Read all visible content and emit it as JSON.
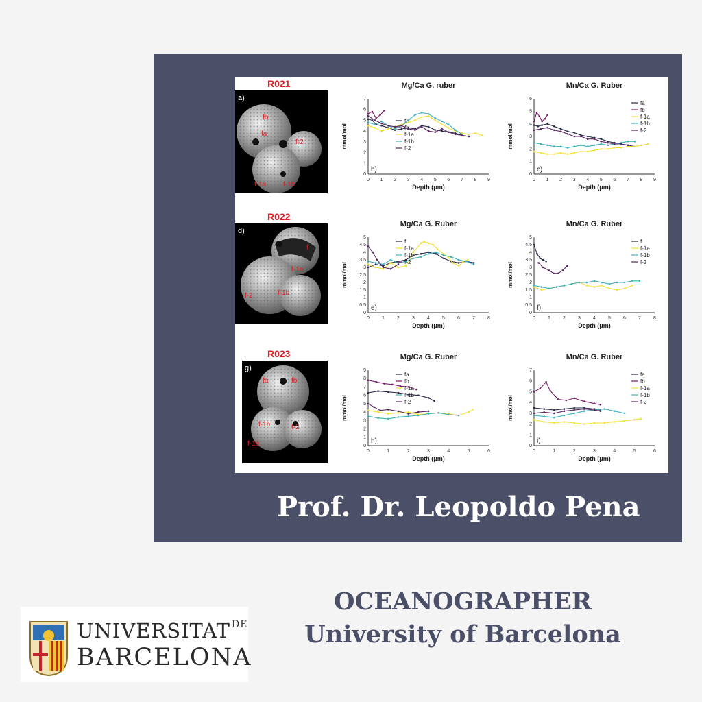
{
  "speaker_name": "Prof. Dr. Leopoldo Pena",
  "role": {
    "line1": "OCEANOGRAPHER",
    "line2": "University of Barcelona"
  },
  "logo": {
    "line1": "UNIVERSITAT",
    "line1_suffix": "DE",
    "line2": "BARCELONA"
  },
  "samples": [
    {
      "name": "R021",
      "panel": "a)",
      "labels": [
        "fb",
        "fa",
        "f-2",
        "f-1a",
        "f-1b"
      ]
    },
    {
      "name": "R022",
      "panel": "d)",
      "labels": [
        "f",
        "f-1a",
        "f-2",
        "f-1b"
      ]
    },
    {
      "name": "R023",
      "panel": "g)",
      "labels": [
        "fa",
        "fb",
        "f-1b",
        "f-2",
        "f-1a"
      ]
    }
  ],
  "colors": {
    "fa": "#2b2b4a",
    "fb": "#7a1f6e",
    "f": "#2b2b4a",
    "f-1a": "#f2e03a",
    "f-1b": "#3fb0b8",
    "f-2": "#5a2a66",
    "panel": "#4b5068"
  },
  "chart_data": [
    {
      "panel": "b)",
      "type": "line",
      "title": "Mg/Ca G. ruber",
      "xlabel": "Depth (μm)",
      "ylabel": "mmol/mol",
      "xlim": [
        0,
        9
      ],
      "ylim": [
        0,
        7
      ],
      "xticks": [
        "0",
        "1",
        "2",
        "3",
        "4",
        "5",
        "6",
        "7",
        "8",
        "9"
      ],
      "yticks": [
        "0",
        "1",
        "2",
        "3",
        "4",
        "5",
        "6",
        "7"
      ],
      "series": [
        {
          "name": "fa",
          "x": [
            0,
            0.3,
            0.6,
            1,
            1.5,
            2,
            2.5,
            3,
            3.5,
            4,
            4.5,
            5,
            5.5,
            6,
            6.5,
            7,
            7.5
          ],
          "y": [
            5.1,
            5.0,
            4.6,
            4.5,
            4.3,
            4.1,
            4.2,
            4.3,
            4.2,
            4.5,
            4.4,
            4.1,
            4.0,
            3.9,
            3.8,
            3.6,
            3.5
          ]
        },
        {
          "name": "fb",
          "x": [
            0,
            0.3,
            0.6,
            0.9,
            1.2
          ],
          "y": [
            5.6,
            5.8,
            5.2,
            5.5,
            5.9
          ]
        },
        {
          "name": "f-1a",
          "x": [
            0,
            0.5,
            1,
            1.5,
            2,
            2.5,
            3,
            3.5,
            4,
            4.5,
            5,
            5.5,
            6,
            6.5,
            7,
            7.5,
            8,
            8.5
          ],
          "y": [
            4.5,
            4.3,
            4.0,
            4.2,
            4.4,
            4.6,
            4.8,
            5.0,
            5.3,
            5.4,
            5.0,
            4.6,
            4.3,
            4.0,
            3.8,
            3.7,
            3.8,
            3.6
          ]
        },
        {
          "name": "f-1b",
          "x": [
            0,
            0.5,
            1,
            1.5,
            2,
            2.5,
            3,
            3.5,
            4,
            4.5,
            5,
            5.5,
            6,
            6.5,
            7
          ],
          "y": [
            4.8,
            4.6,
            4.9,
            4.5,
            4.2,
            4.5,
            5.0,
            5.5,
            5.7,
            5.6,
            5.2,
            4.9,
            4.6,
            4.1,
            3.7
          ]
        },
        {
          "name": "f-2",
          "x": [
            0,
            0.5,
            1,
            1.5,
            2,
            2.5,
            3,
            3.5,
            4,
            4.5,
            5,
            5.5,
            6,
            6.5,
            7,
            7.5
          ],
          "y": [
            5.4,
            5.0,
            4.7,
            4.5,
            4.4,
            4.5,
            4.2,
            4.1,
            4.4,
            4.0,
            3.9,
            4.2,
            3.9,
            3.7,
            3.6,
            3.5
          ]
        }
      ]
    },
    {
      "panel": "c)",
      "type": "line",
      "title": "Mn/Ca G. Ruber",
      "xlabel": "Depth (μm)",
      "ylabel": "mmol/mol",
      "xlim": [
        0,
        9
      ],
      "ylim": [
        0,
        6
      ],
      "xticks": [
        "0",
        "1",
        "2",
        "3",
        "4",
        "5",
        "6",
        "7",
        "8",
        "9"
      ],
      "yticks": [
        "0",
        "1",
        "2",
        "3",
        "4",
        "5",
        "6"
      ],
      "series": [
        {
          "name": "fa",
          "x": [
            0,
            0.3,
            0.6,
            1,
            1.5,
            2,
            2.5,
            3,
            3.5,
            4,
            4.5,
            5,
            5.5,
            6,
            6.5,
            7,
            7.5
          ],
          "y": [
            3.9,
            3.8,
            3.9,
            4.0,
            3.8,
            3.6,
            3.4,
            3.3,
            3.1,
            3.0,
            2.9,
            2.8,
            2.6,
            2.5,
            2.4,
            2.3,
            2.2
          ]
        },
        {
          "name": "fb",
          "x": [
            0,
            0.2,
            0.4,
            0.6,
            0.8,
            1.0
          ],
          "y": [
            4.2,
            4.9,
            4.6,
            4.2,
            4.4,
            4.7
          ]
        },
        {
          "name": "f-1a",
          "x": [
            0,
            0.5,
            1,
            1.5,
            2,
            2.5,
            3,
            3.5,
            4,
            4.5,
            5,
            5.5,
            6,
            6.5,
            7,
            7.5,
            8,
            8.5
          ],
          "y": [
            1.8,
            1.7,
            1.6,
            1.6,
            1.7,
            1.6,
            1.7,
            1.8,
            1.8,
            1.9,
            2.0,
            2.0,
            2.1,
            2.1,
            2.2,
            2.2,
            2.3,
            2.4
          ]
        },
        {
          "name": "f-1b",
          "x": [
            0,
            0.5,
            1,
            1.5,
            2,
            2.5,
            3,
            3.5,
            4,
            4.5,
            5,
            5.5,
            6,
            6.5,
            7,
            7.5
          ],
          "y": [
            2.5,
            2.4,
            2.3,
            2.2,
            2.2,
            2.1,
            2.2,
            2.3,
            2.2,
            2.3,
            2.4,
            2.3,
            2.4,
            2.5,
            2.6,
            2.6
          ]
        },
        {
          "name": "f-2",
          "x": [
            0,
            0.5,
            1,
            1.5,
            2,
            2.5,
            3,
            3.5,
            4,
            4.5,
            5,
            5.5,
            6,
            6.5,
            7
          ],
          "y": [
            3.5,
            3.6,
            3.7,
            3.5,
            3.4,
            3.2,
            3.0,
            3.0,
            2.8,
            2.8,
            2.6,
            2.5,
            2.4,
            2.4,
            2.3
          ]
        }
      ]
    },
    {
      "panel": "e)",
      "type": "line",
      "title": "Mg/Ca G. Ruber",
      "xlabel": "Depth (μm)",
      "ylabel": "mmol/mol",
      "xlim": [
        0,
        8
      ],
      "ylim": [
        0,
        5
      ],
      "xticks": [
        "0",
        "1",
        "2",
        "3",
        "4",
        "5",
        "6",
        "7",
        "8"
      ],
      "yticks": [
        "0",
        "0.5",
        "1",
        "1.5",
        "2",
        "2.5",
        "3",
        "3.5",
        "4",
        "4.5",
        "5"
      ],
      "series": [
        {
          "name": "f",
          "x": [
            0,
            0.5,
            1,
            1.5,
            2,
            2.5,
            3,
            3.5,
            4,
            4.5,
            5,
            5.5,
            6,
            6.5,
            7
          ],
          "y": [
            3.0,
            3.2,
            3.1,
            3.3,
            3.4,
            3.5,
            3.8,
            3.9,
            4.0,
            3.9,
            3.6,
            3.4,
            3.3,
            3.4,
            3.3
          ]
        },
        {
          "name": "f-1a",
          "x": [
            0,
            0.5,
            1,
            1.5,
            2,
            2.5,
            3,
            3.5,
            3.7,
            4,
            4.3,
            4.6,
            5,
            5.3,
            5.6,
            6,
            6.3,
            6.6
          ],
          "y": [
            3.2,
            3.0,
            2.9,
            3.3,
            3.0,
            3.1,
            4.0,
            4.6,
            4.7,
            4.6,
            4.5,
            4.2,
            3.9,
            3.7,
            3.3,
            3.1,
            3.4,
            3.5
          ]
        },
        {
          "name": "f-1b",
          "x": [
            0,
            0.5,
            1,
            1.5,
            2,
            2.5,
            3,
            3.5,
            4,
            4.5,
            5,
            5.5,
            6,
            6.5,
            7
          ],
          "y": [
            3.4,
            3.3,
            3.2,
            3.5,
            3.3,
            3.4,
            3.6,
            3.7,
            3.9,
            4.0,
            3.8,
            3.7,
            3.5,
            3.4,
            3.2
          ]
        },
        {
          "name": "f-2",
          "x": [
            0,
            0.3,
            0.6,
            1,
            1.5,
            2
          ],
          "y": [
            4.4,
            4.0,
            3.5,
            3.0,
            2.9,
            3.2
          ]
        }
      ]
    },
    {
      "panel": "f)",
      "type": "line",
      "title": "Mn/Ca G. Ruber",
      "xlabel": "Depth (μm)",
      "ylabel": "mmol/mol",
      "xlim": [
        0,
        8
      ],
      "ylim": [
        0,
        5
      ],
      "xticks": [
        "0",
        "1",
        "2",
        "3",
        "4",
        "5",
        "6",
        "7",
        "8"
      ],
      "yticks": [
        "0",
        "0.5",
        "1",
        "1.5",
        "2",
        "2.5",
        "3",
        "3.5",
        "4",
        "4.5",
        "5"
      ],
      "series": [
        {
          "name": "f",
          "x": [
            0,
            0.2,
            0.4,
            0.6,
            0.8
          ],
          "y": [
            4.5,
            3.9,
            3.6,
            3.5,
            3.4
          ]
        },
        {
          "name": "f-1a",
          "x": [
            0,
            0.5,
            1,
            1.5,
            2,
            2.5,
            3,
            3.5,
            4,
            4.5,
            5,
            5.5,
            6,
            6.5
          ],
          "y": [
            1.7,
            1.5,
            1.6,
            1.7,
            1.8,
            1.9,
            2.0,
            1.8,
            1.7,
            1.8,
            1.6,
            1.5,
            1.6,
            1.8
          ]
        },
        {
          "name": "f-1b",
          "x": [
            0,
            0.5,
            1,
            1.5,
            2,
            2.5,
            3,
            3.5,
            4,
            4.5,
            5,
            5.5,
            6,
            6.5,
            7
          ],
          "y": [
            1.8,
            1.7,
            1.6,
            1.7,
            1.8,
            1.9,
            2.0,
            2.0,
            2.1,
            2.0,
            1.9,
            2.0,
            2.0,
            2.1,
            2.1
          ]
        },
        {
          "name": "f-2",
          "x": [
            0.3,
            0.6,
            1,
            1.3,
            1.6,
            1.9,
            2.2
          ],
          "y": [
            3.3,
            3.0,
            2.8,
            2.6,
            2.6,
            2.8,
            3.1
          ]
        }
      ]
    },
    {
      "panel": "h)",
      "type": "line",
      "title": "Mg/Ca G. Ruber",
      "xlabel": "Depth (μm)",
      "ylabel": "mmol/mol",
      "xlim": [
        0,
        6
      ],
      "ylim": [
        0,
        9
      ],
      "xticks": [
        "0",
        "1",
        "2",
        "3",
        "4",
        "5",
        "6"
      ],
      "yticks": [
        "0",
        "1",
        "2",
        "3",
        "4",
        "5",
        "6",
        "7",
        "8",
        "9"
      ],
      "series": [
        {
          "name": "fa",
          "x": [
            0,
            0.5,
            1,
            1.5,
            2,
            2.5,
            3,
            3.3
          ],
          "y": [
            6.3,
            6.5,
            6.4,
            6.3,
            6.1,
            6.0,
            5.7,
            5.3
          ]
        },
        {
          "name": "fb",
          "x": [
            0,
            0.4,
            0.8,
            1.2,
            1.6,
            2.0,
            2.4
          ],
          "y": [
            7.8,
            7.6,
            7.4,
            7.3,
            7.1,
            7.0,
            6.7
          ]
        },
        {
          "name": "f-1a",
          "x": [
            0,
            0.5,
            1,
            1.5,
            2,
            2.5,
            3,
            3.5,
            4,
            4.5,
            5,
            5.2
          ],
          "y": [
            4.2,
            4.0,
            3.8,
            3.9,
            4.0,
            3.7,
            3.8,
            3.9,
            3.8,
            3.6,
            4.0,
            4.3
          ]
        },
        {
          "name": "f-1b",
          "x": [
            0,
            0.5,
            1,
            1.5,
            2,
            2.5,
            3,
            3.5,
            4,
            4.5
          ],
          "y": [
            3.5,
            3.3,
            3.2,
            3.4,
            3.5,
            3.6,
            3.8,
            3.9,
            3.7,
            3.6
          ]
        },
        {
          "name": "f-2",
          "x": [
            0,
            0.3,
            0.6,
            1,
            1.5,
            2,
            2.5,
            3
          ],
          "y": [
            5.0,
            4.6,
            4.2,
            4.3,
            4.1,
            3.8,
            4.0,
            4.1
          ]
        }
      ]
    },
    {
      "panel": "i)",
      "type": "line",
      "title": "Mn/Ca G. Ruber",
      "xlabel": "Depth (μm)",
      "ylabel": "mmol/mol",
      "xlim": [
        0,
        6
      ],
      "ylim": [
        0,
        7
      ],
      "xticks": [
        "0",
        "1",
        "2",
        "3",
        "4",
        "5",
        "6"
      ],
      "yticks": [
        "0",
        "1",
        "2",
        "3",
        "4",
        "5",
        "6",
        "7"
      ],
      "series": [
        {
          "name": "fa",
          "x": [
            0,
            0.5,
            1,
            1.5,
            2,
            2.5,
            3,
            3.3
          ],
          "y": [
            3.5,
            3.4,
            3.3,
            3.4,
            3.5,
            3.5,
            3.4,
            3.3
          ]
        },
        {
          "name": "fb",
          "x": [
            0,
            0.3,
            0.6,
            0.8,
            1.2,
            1.6,
            2,
            2.5,
            3,
            3.3
          ],
          "y": [
            5.0,
            5.3,
            5.9,
            5.1,
            4.3,
            4.2,
            4.4,
            4.1,
            3.9,
            3.8
          ]
        },
        {
          "name": "f-1a",
          "x": [
            0,
            0.5,
            1,
            1.5,
            2,
            2.5,
            3,
            3.5,
            4,
            4.5,
            5,
            5.3
          ],
          "y": [
            2.4,
            2.2,
            2.1,
            2.2,
            2.1,
            2.0,
            2.1,
            2.1,
            2.2,
            2.3,
            2.4,
            2.5
          ]
        },
        {
          "name": "f-1b",
          "x": [
            0,
            0.5,
            1,
            1.5,
            2,
            2.5,
            3,
            3.5,
            4,
            4.5
          ],
          "y": [
            2.8,
            2.7,
            2.6,
            2.8,
            3.0,
            3.2,
            3.3,
            3.4,
            3.2,
            3.0
          ]
        },
        {
          "name": "f-2",
          "x": [
            0,
            0.5,
            1,
            1.5,
            2,
            2.5,
            3,
            3.3
          ],
          "y": [
            3.0,
            3.1,
            3.0,
            3.2,
            3.3,
            3.4,
            3.3,
            3.2
          ]
        }
      ]
    }
  ]
}
